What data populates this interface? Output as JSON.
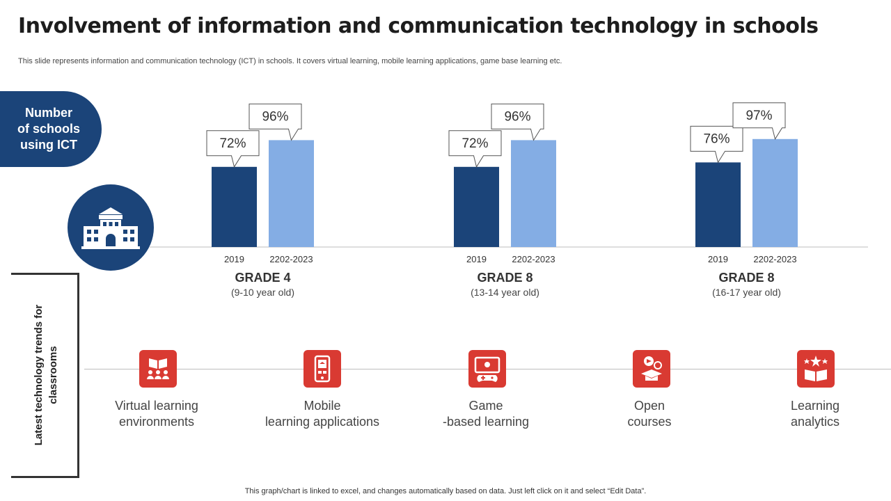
{
  "slide": {
    "title": "Involvement of information and communication technology in schools",
    "subtitle": "This slide represents information and communication technology (ICT) in schools. It covers virtual learning, mobile learning applications, game base learning etc.",
    "footer": "This graph/chart is linked to excel,  and changes automatically based on data. Just left click on it and select “Edit Data”."
  },
  "side_panel": {
    "label_lines": [
      "Number",
      "of schools",
      "using ICT"
    ],
    "icon": "school-building-icon"
  },
  "colors": {
    "navy": "#1b4479",
    "light_blue": "#84ade4",
    "red": "#d93a32",
    "axis": "#bdbdbd"
  },
  "chart_data": {
    "type": "bar",
    "ylabel": "Number of schools using ICT (%)",
    "ylim": [
      0,
      100
    ],
    "value_suffix": "%",
    "groups": [
      {
        "name": "GRADE 4",
        "subtitle": "(9-10 year old)",
        "bars": [
          {
            "label": "2019",
            "value": 72
          },
          {
            "label": "2202-2023",
            "value": 96
          }
        ]
      },
      {
        "name": "GRADE 8",
        "subtitle": "(13-14 year old)",
        "bars": [
          {
            "label": "2019",
            "value": 72
          },
          {
            "label": "2202-2023",
            "value": 96
          }
        ]
      },
      {
        "name": "GRADE 8",
        "subtitle": "(16-17 year old)",
        "bars": [
          {
            "label": "2019",
            "value": 76
          },
          {
            "label": "2202-2023",
            "value": 97
          }
        ]
      }
    ]
  },
  "trends": {
    "section_label_lines": [
      "Latest technology trends for",
      "classrooms"
    ],
    "items": [
      {
        "label_lines": [
          "Virtual learning",
          "environments"
        ],
        "icon": "classroom-book-icon"
      },
      {
        "label_lines": [
          "Mobile",
          "learning applications"
        ],
        "icon": "mobile-learning-icon"
      },
      {
        "label_lines": [
          "Game",
          "-based learning"
        ],
        "icon": "game-controller-icon"
      },
      {
        "label_lines": [
          "Open",
          "courses"
        ],
        "icon": "online-course-icon"
      },
      {
        "label_lines": [
          "Learning",
          "analytics"
        ],
        "icon": "learning-analytics-icon"
      }
    ]
  }
}
